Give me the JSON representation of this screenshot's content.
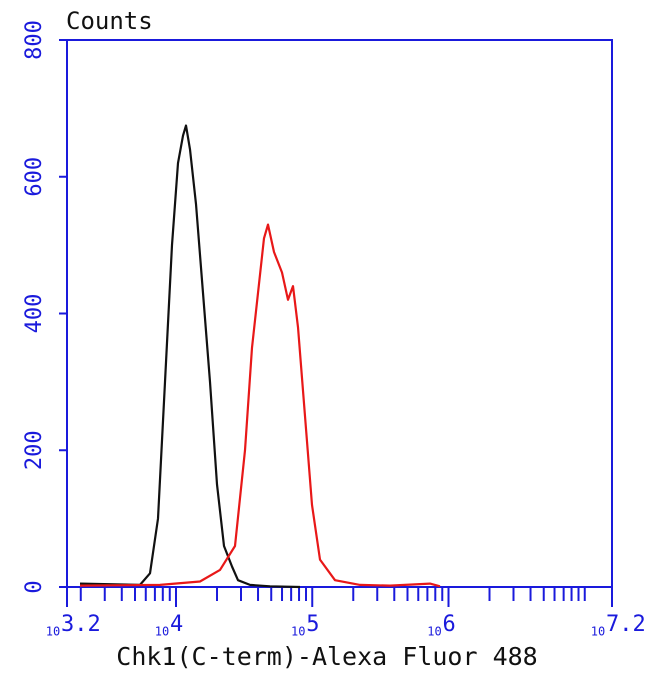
{
  "chart_data": {
    "type": "line",
    "title": "Counts",
    "x_label": "Chk1(C-term)-Alexa Fluor 488",
    "xscale": "log",
    "xlim": [
      1584.89,
      15848932
    ],
    "ylim": [
      0,
      800
    ],
    "xticks": [
      {
        "value": 1584.89,
        "label": "10",
        "power": "3.2"
      },
      {
        "value": 10000,
        "label": "10",
        "power": "4"
      },
      {
        "value": 100000,
        "label": "10",
        "power": "5"
      },
      {
        "value": 1000000,
        "label": "10",
        "power": "6"
      },
      {
        "value": 15848932,
        "label": "10",
        "power": "7.2"
      }
    ],
    "xminor": [
      2000,
      3000,
      4000,
      5000,
      6000,
      7000,
      8000,
      9000,
      20000,
      30000,
      40000,
      50000,
      60000,
      70000,
      80000,
      90000,
      200000,
      300000,
      400000,
      500000,
      600000,
      700000,
      800000,
      900000,
      2000000,
      3000000,
      4000000,
      5000000,
      6000000,
      7000000,
      8000000,
      9000000,
      10000000
    ],
    "yticks": [
      0,
      200,
      400,
      600,
      800
    ],
    "axis_color": "#1a1adc",
    "series": [
      {
        "color": "#111111",
        "x": [
          1974,
          5442,
          6446,
          7379,
          8306,
          9346,
          10344,
          11258,
          11840,
          12670,
          14025,
          15785,
          17763,
          19994,
          22507,
          25766,
          28510,
          34925,
          48962,
          81320
        ],
        "values": [
          5,
          3,
          20,
          100,
          300,
          500,
          620,
          660,
          675,
          640,
          560,
          430,
          300,
          150,
          60,
          30,
          10,
          3,
          1,
          0
        ]
      },
      {
        "color": "#e81818",
        "x": [
          1974,
          7630,
          15004,
          21030,
          27100,
          32090,
          36130,
          39980,
          44250,
          47340,
          52400,
          59980,
          66380,
          72240,
          78630,
          88470,
          99580,
          114000,
          146900,
          224100,
          372100,
          731500,
          866100
        ],
        "values": [
          2,
          3,
          8,
          25,
          60,
          200,
          350,
          430,
          510,
          530,
          490,
          460,
          420,
          440,
          380,
          250,
          120,
          40,
          10,
          3,
          2,
          5,
          1
        ]
      }
    ]
  }
}
